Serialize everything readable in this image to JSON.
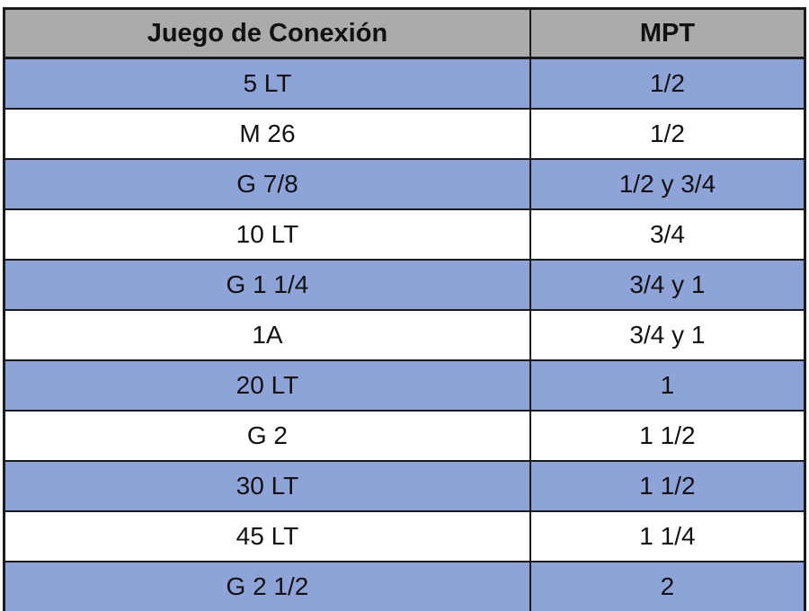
{
  "table": {
    "columns": [
      {
        "key": "conexion",
        "label": "Juego de Conexión"
      },
      {
        "key": "mpt",
        "label": "MPT"
      }
    ],
    "rows": [
      {
        "conexion": "5 LT",
        "mpt": "1/2"
      },
      {
        "conexion": "M 26",
        "mpt": "1/2"
      },
      {
        "conexion": "G 7/8",
        "mpt": "1/2 y 3/4"
      },
      {
        "conexion": "10 LT",
        "mpt": "3/4"
      },
      {
        "conexion": "G 1 1/4",
        "mpt": "3/4 y 1"
      },
      {
        "conexion": "1A",
        "mpt": "3/4 y 1"
      },
      {
        "conexion": "20 LT",
        "mpt": "1"
      },
      {
        "conexion": "G 2",
        "mpt": "1 1/2"
      },
      {
        "conexion": "30 LT",
        "mpt": "1 1/2"
      },
      {
        "conexion": "45 LT",
        "mpt": "1 1/4"
      },
      {
        "conexion": "G 2 1/2",
        "mpt": "2"
      }
    ],
    "colors": {
      "header_bg": "#acaaaa",
      "row_bg": "#ffffff",
      "row_alt_bg": "#8ea3d8",
      "border": "#1b1b1b",
      "text": "#111111"
    }
  }
}
